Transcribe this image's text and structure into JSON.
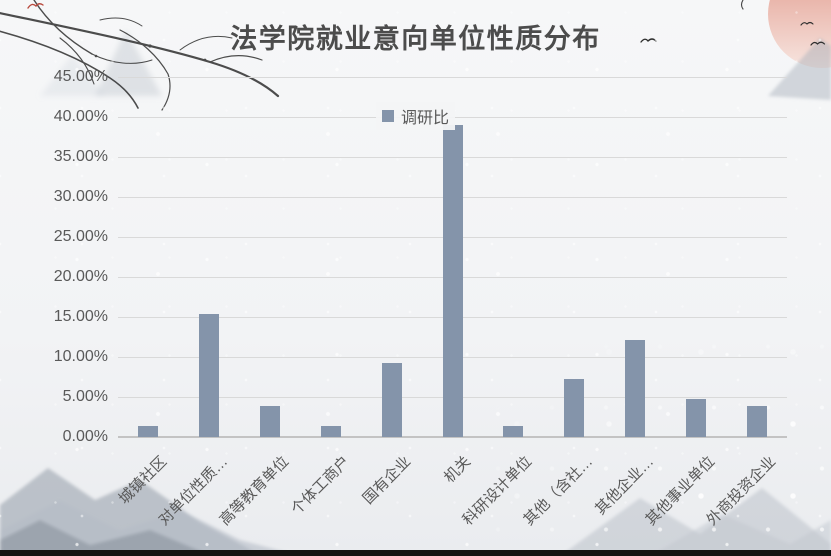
{
  "title": "法学院就业意向单位性质分布",
  "legend": {
    "label": "调研比"
  },
  "colors": {
    "bar": "#8494aa",
    "legend_marker": "#8494aa",
    "gridline": "#d9d9d9",
    "axis_line": "#c3c3c3",
    "text": "#595959",
    "title_text": "#4c4c4c",
    "background": "#f2f3f5",
    "sun": "#e09384",
    "footer_band": "#121212"
  },
  "chart_data": {
    "type": "bar",
    "title": "法学院就业意向单位性质分布",
    "series_name": "调研比",
    "categories": [
      "城镇社区",
      "对单位性质…",
      "高等教育单位",
      "个体工商户",
      "国有企业",
      "机关",
      "科研设计单位",
      "其他（含社…",
      "其他企业…",
      "其他事业单位",
      "外商投资企业"
    ],
    "values": [
      1.4,
      15.4,
      3.9,
      1.4,
      9.3,
      39.0,
      1.4,
      7.3,
      12.1,
      4.7,
      3.9
    ],
    "unit": "%",
    "xlabel": "",
    "ylabel": "",
    "ylim": [
      0,
      45
    ],
    "ytick_step": 5,
    "ytick_labels": [
      "0.00%",
      "5.00%",
      "10.00%",
      "15.00%",
      "20.00%",
      "25.00%",
      "30.00%",
      "35.00%",
      "40.00%",
      "45.00%"
    ],
    "grid": true,
    "legend_position": "top-center",
    "bar_color": "#8494aa"
  },
  "decorations": {
    "names": [
      "ink-branches",
      "mist-mountains-top-left",
      "mountains-bottom-left",
      "mountains-bottom-right",
      "mountain-under-sun",
      "red-sun",
      "flying-birds",
      "red-bird-accent",
      "calligraphy-stroke",
      "snow-texture",
      "footer-band"
    ]
  }
}
